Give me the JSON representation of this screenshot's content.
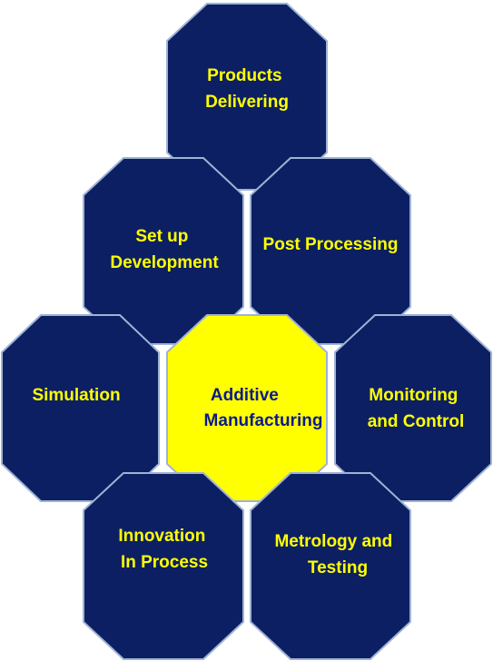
{
  "colors": {
    "hex_fill": "#0c1f63",
    "hex_text": "#ffff00",
    "center_fill": "#ffff00",
    "center_text": "#0b1a8c"
  },
  "hexagons": [
    {
      "id": "products-delivering",
      "lines": [
        "Products",
        "Delivering"
      ],
      "center": false
    },
    {
      "id": "set-up-development",
      "lines": [
        "Set up",
        "Development"
      ],
      "center": false
    },
    {
      "id": "post-processing",
      "lines": [
        "Post Processing"
      ],
      "center": false
    },
    {
      "id": "simulation",
      "lines": [
        "Simulation"
      ],
      "center": false
    },
    {
      "id": "additive-manufacturing",
      "lines": [
        "Additive",
        "Manufacturing"
      ],
      "center": true
    },
    {
      "id": "monitoring-and-control",
      "lines": [
        "Monitoring",
        "and Control"
      ],
      "center": false
    },
    {
      "id": "innovation-in-process",
      "lines": [
        "Innovation",
        "In Process"
      ],
      "center": false
    },
    {
      "id": "metrology-and-testing",
      "lines": [
        "Metrology and",
        "Testing"
      ],
      "center": false
    }
  ]
}
